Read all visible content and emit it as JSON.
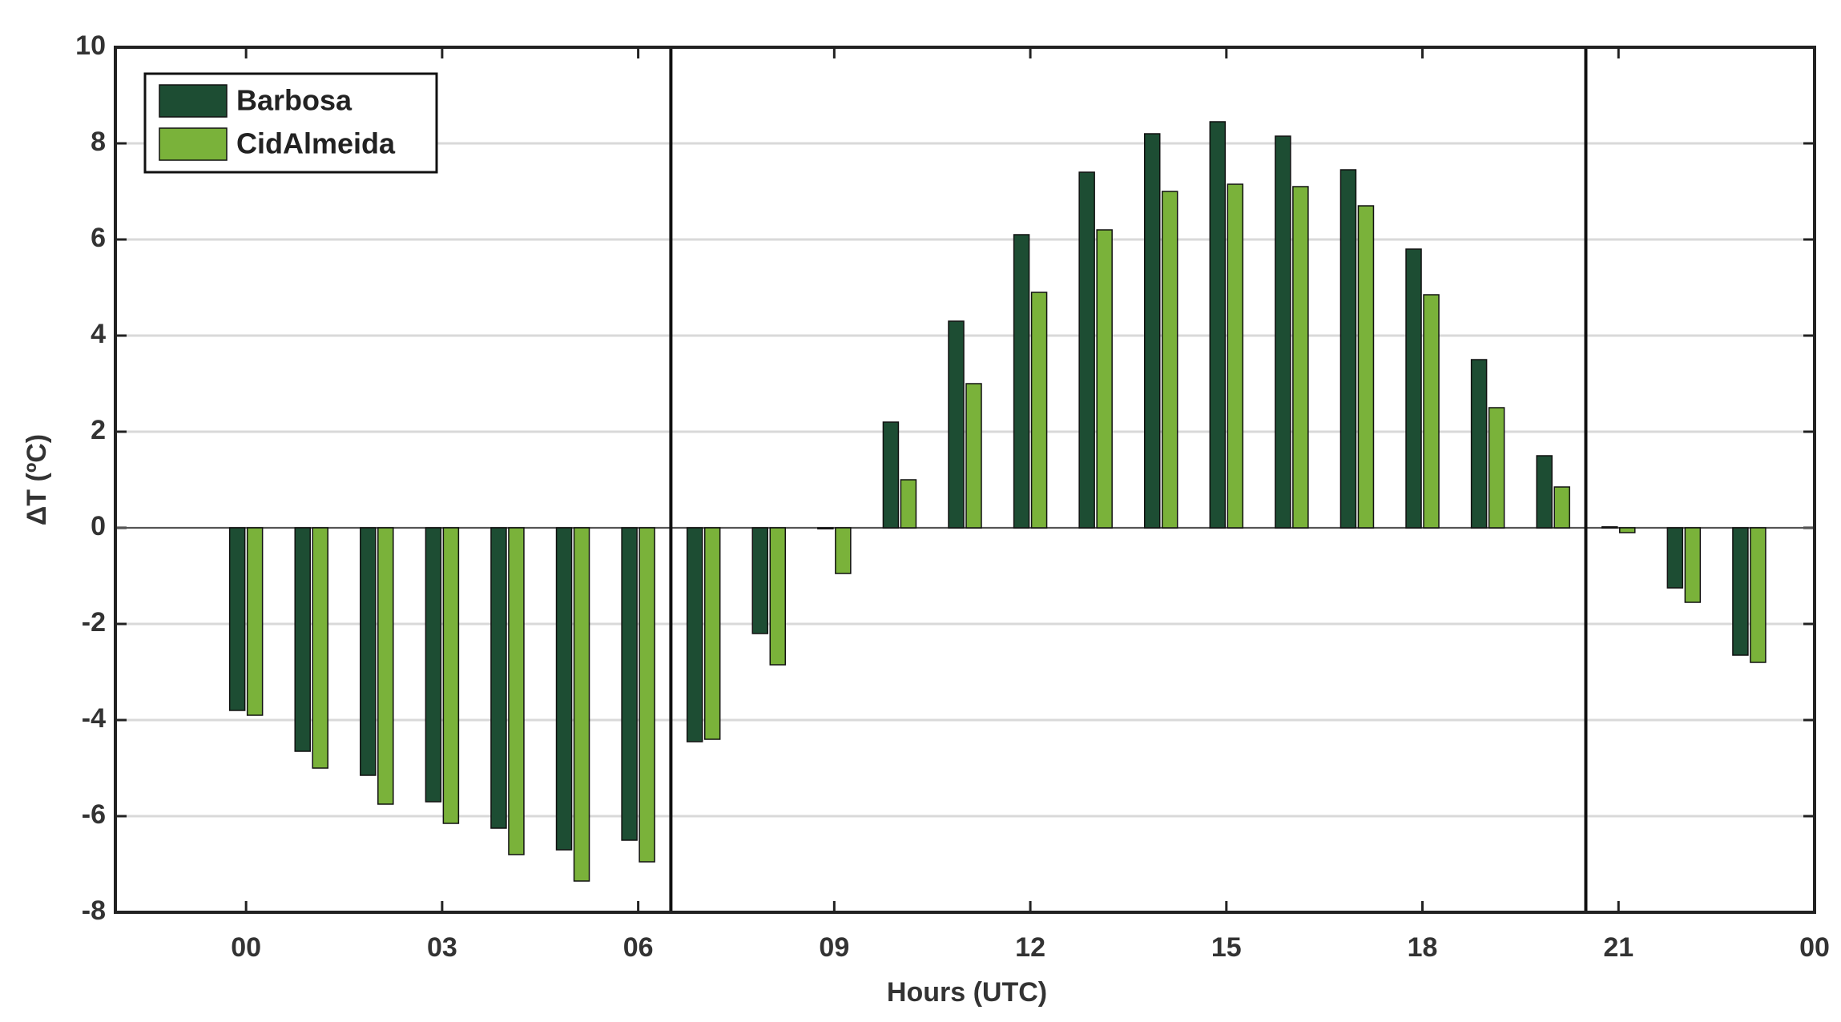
{
  "chart_data": {
    "type": "bar",
    "xlabel": "Hours (UTC)",
    "ylabel": "ΔT (ºC)",
    "x": [
      0,
      1,
      2,
      3,
      4,
      5,
      6,
      7,
      8,
      9,
      10,
      11,
      12,
      13,
      14,
      15,
      16,
      17,
      18,
      19,
      20,
      21,
      22,
      23
    ],
    "series": [
      {
        "name": "Barbosa",
        "color": "#1d4d33",
        "values": [
          -3.8,
          -4.65,
          -5.15,
          -5.7,
          -6.25,
          -6.7,
          -6.5,
          -4.45,
          -2.2,
          -0.02,
          2.2,
          4.3,
          6.1,
          7.4,
          8.2,
          8.45,
          8.15,
          7.45,
          5.8,
          3.5,
          1.5,
          0.02,
          -1.25,
          -2.65
        ]
      },
      {
        "name": "CidAlmeida",
        "color": "#7ab23a",
        "values": [
          -3.9,
          -5.0,
          -5.75,
          -6.15,
          -6.8,
          -7.35,
          -6.95,
          -4.4,
          -2.85,
          -0.95,
          1.0,
          3.0,
          4.9,
          6.2,
          7.0,
          7.15,
          7.1,
          6.7,
          4.85,
          2.5,
          0.85,
          -0.1,
          -1.55,
          -2.8
        ]
      }
    ],
    "xlim": [
      -2,
      24
    ],
    "xticks": [
      {
        "value": 0,
        "label": "00"
      },
      {
        "value": 3,
        "label": "03"
      },
      {
        "value": 6,
        "label": "06"
      },
      {
        "value": 9,
        "label": "09"
      },
      12,
      15,
      18,
      21,
      {
        "value": 24,
        "label": "00"
      }
    ],
    "ylim": [
      -8,
      10
    ],
    "yticks": [
      -8,
      -6,
      -4,
      -2,
      0,
      2,
      4,
      6,
      8,
      10
    ],
    "vlines": [
      6.5,
      20.5
    ],
    "grid": true,
    "legend": "upper left"
  }
}
